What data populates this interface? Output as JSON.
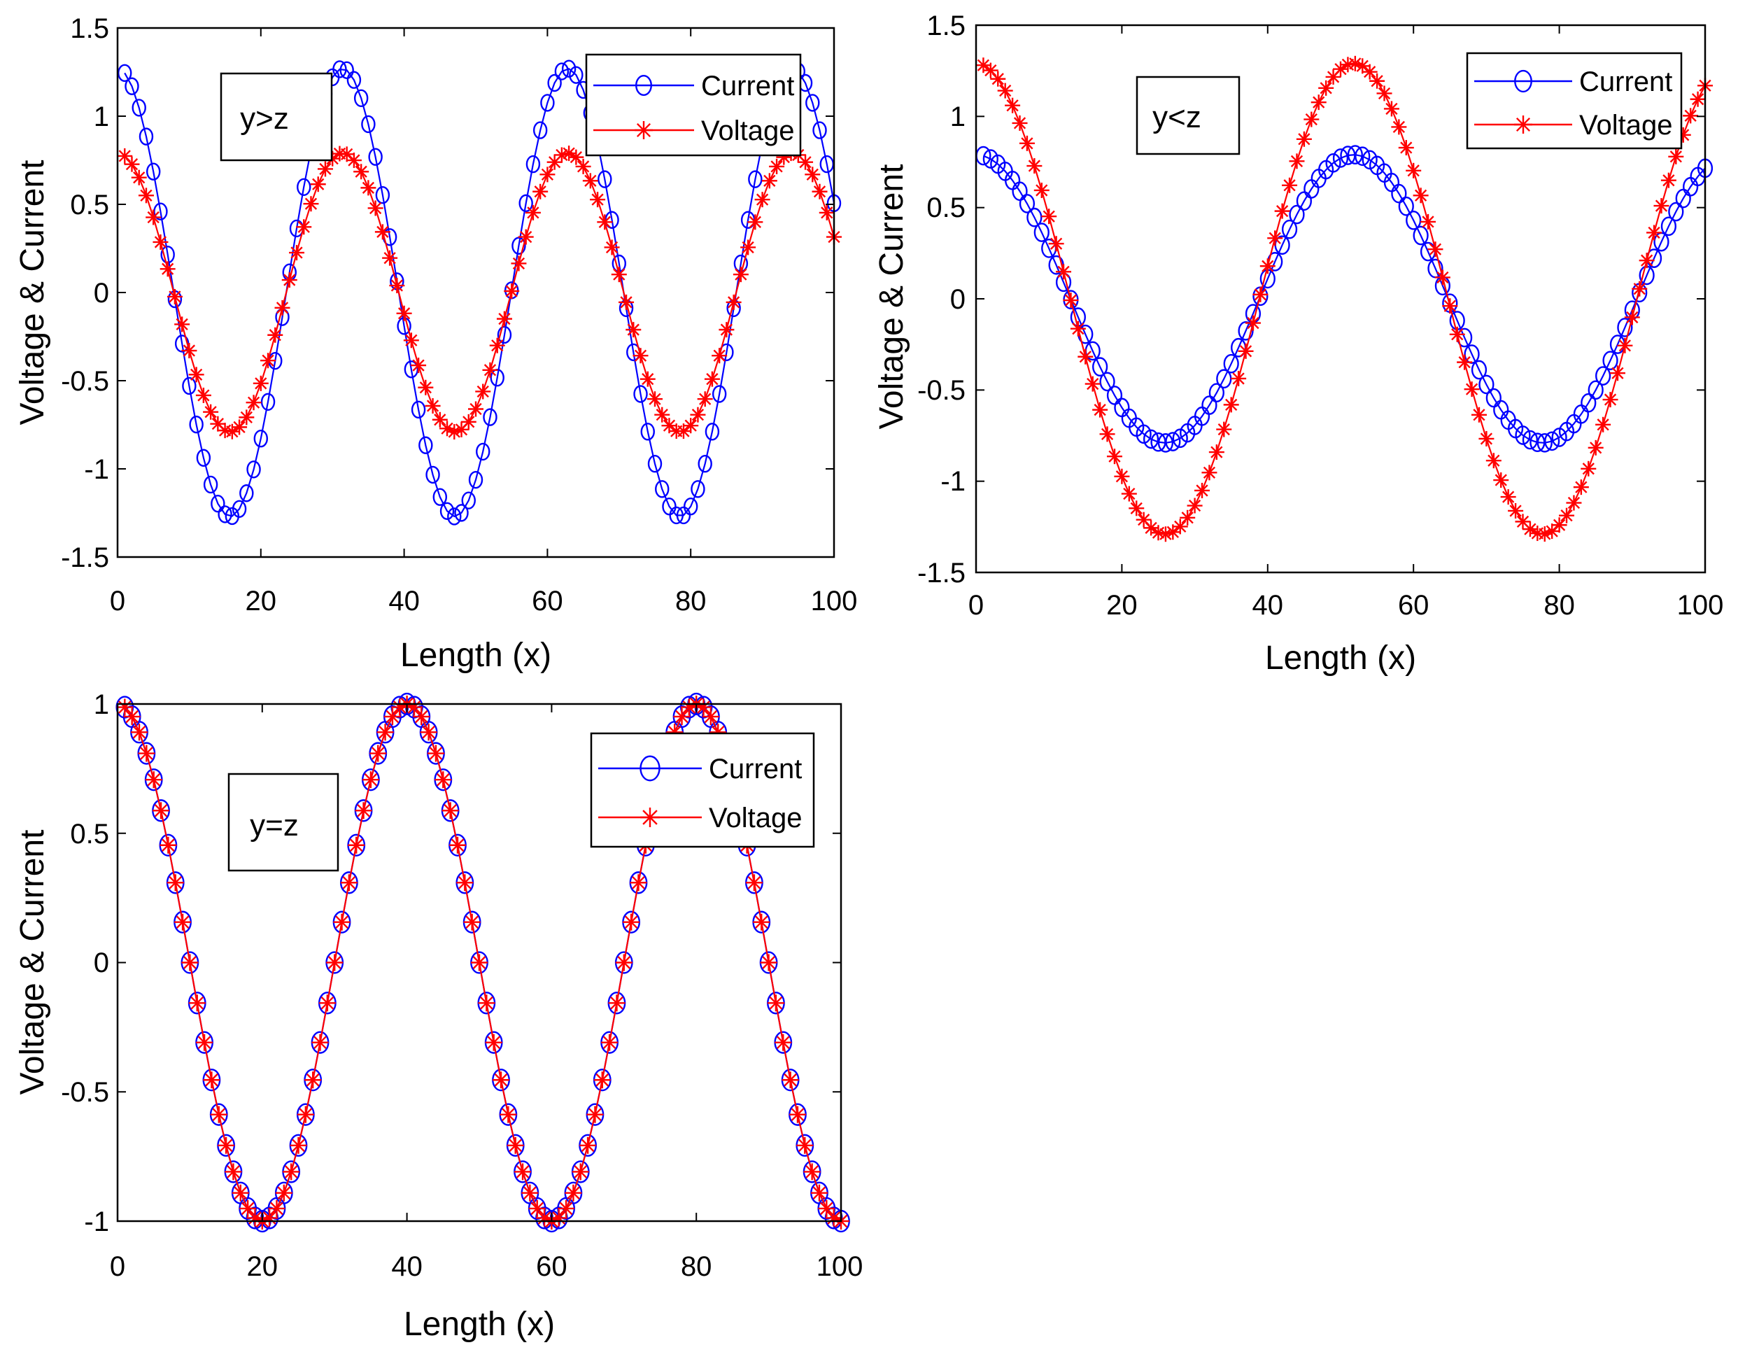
{
  "colors": {
    "current": "#0000ff",
    "voltage": "#ff0000",
    "axis": "#000000",
    "background": "#ffffff"
  },
  "chart_data": [
    {
      "type": "line",
      "panel": "top-left",
      "annotation": "y>z",
      "xlabel": "Length (x)",
      "ylabel": "Voltage & Current",
      "xlim": [
        0,
        100
      ],
      "ylim": [
        -1.5,
        1.5
      ],
      "xticks": [
        "0",
        "20",
        "40",
        "60",
        "80",
        "100"
      ],
      "yticks": [
        "-1.5",
        "-1",
        "-0.5",
        "0",
        "0.5",
        "1",
        "1.5"
      ],
      "legend_position": "top-right",
      "x": {
        "start": 1,
        "end": 100,
        "step": 1
      },
      "series": [
        {
          "name": "Current",
          "marker": "circle",
          "amplitude": 1.27,
          "period": 31.4,
          "phase_x": 0.0
        },
        {
          "name": "Voltage",
          "marker": "asterisk",
          "amplitude": 0.79,
          "period": 31.4,
          "phase_x": 0.0
        }
      ]
    },
    {
      "type": "line",
      "panel": "top-right",
      "annotation": "y<z",
      "xlabel": "Length (x)",
      "ylabel": "Voltage & Current",
      "xlim": [
        0,
        100
      ],
      "ylim": [
        -1.5,
        1.5
      ],
      "xticks": [
        "0",
        "20",
        "40",
        "60",
        "80",
        "100"
      ],
      "yticks": [
        "-1.5",
        "-1",
        "-0.5",
        "0",
        "0.5",
        "1",
        "1.5"
      ],
      "legend_position": "top-right",
      "x": {
        "start": 1,
        "end": 100,
        "step": 1
      },
      "series": [
        {
          "name": "Current",
          "marker": "circle",
          "amplitude": 0.79,
          "period": 51.8,
          "phase_x": 0.0
        },
        {
          "name": "Voltage",
          "marker": "asterisk",
          "amplitude": 1.29,
          "period": 51.8,
          "phase_x": 0.0
        }
      ]
    },
    {
      "type": "line",
      "panel": "bottom-left",
      "annotation": "y=z",
      "xlabel": "Length (x)",
      "ylabel": "Voltage & Current",
      "xlim": [
        0,
        100
      ],
      "ylim": [
        -1,
        1
      ],
      "xticks": [
        "0",
        "20",
        "40",
        "60",
        "80",
        "100"
      ],
      "yticks": [
        "-1",
        "-0.5",
        "0",
        "0.5",
        "1"
      ],
      "legend_position": "top-right",
      "x": {
        "start": 1,
        "end": 100,
        "step": 1
      },
      "series": [
        {
          "name": "Current",
          "marker": "circle",
          "amplitude": 1.0,
          "period": 40.0,
          "phase_x": 0.0
        },
        {
          "name": "Voltage",
          "marker": "asterisk",
          "amplitude": 1.0,
          "period": 40.0,
          "phase_x": 0.0
        }
      ]
    }
  ]
}
